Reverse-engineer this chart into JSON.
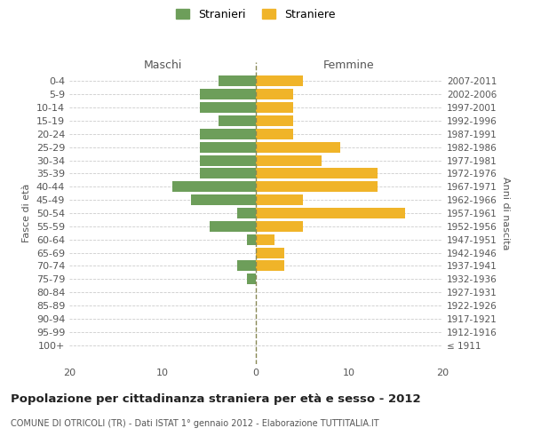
{
  "age_groups": [
    "0-4",
    "5-9",
    "10-14",
    "15-19",
    "20-24",
    "25-29",
    "30-34",
    "35-39",
    "40-44",
    "45-49",
    "50-54",
    "55-59",
    "60-64",
    "65-69",
    "70-74",
    "75-79",
    "80-84",
    "85-89",
    "90-94",
    "95-99",
    "100+"
  ],
  "birth_years": [
    "2007-2011",
    "2002-2006",
    "1997-2001",
    "1992-1996",
    "1987-1991",
    "1982-1986",
    "1977-1981",
    "1972-1976",
    "1967-1971",
    "1962-1966",
    "1957-1961",
    "1952-1956",
    "1947-1951",
    "1942-1946",
    "1937-1941",
    "1932-1936",
    "1927-1931",
    "1922-1926",
    "1917-1921",
    "1912-1916",
    "≤ 1911"
  ],
  "males": [
    4,
    6,
    6,
    4,
    6,
    6,
    6,
    6,
    9,
    7,
    2,
    5,
    1,
    0,
    2,
    1,
    0,
    0,
    0,
    0,
    0
  ],
  "females": [
    5,
    4,
    4,
    4,
    4,
    9,
    7,
    13,
    13,
    5,
    16,
    5,
    2,
    3,
    3,
    0,
    0,
    0,
    0,
    0,
    0
  ],
  "male_color": "#6d9e5a",
  "female_color": "#f0b429",
  "title": "Popolazione per cittadinanza straniera per età e sesso - 2012",
  "subtitle": "COMUNE DI OTRICOLI (TR) - Dati ISTAT 1° gennaio 2012 - Elaborazione TUTTITALIA.IT",
  "ylabel_left": "Fasce di età",
  "ylabel_right": "Anni di nascita",
  "xlabel_left": "Maschi",
  "xlabel_right": "Femmine",
  "legend_male": "Stranieri",
  "legend_female": "Straniere",
  "xlim": 20,
  "background_color": "#ffffff",
  "grid_color": "#cccccc",
  "bar_height": 0.8
}
